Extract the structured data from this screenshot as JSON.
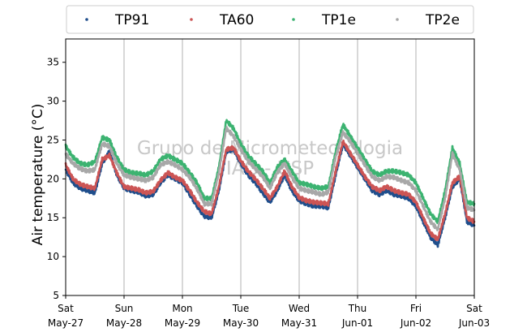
{
  "chart_data": {
    "type": "scatter",
    "ylabel": "Air temperature (°C)",
    "xlabel": "",
    "ylim": [
      5,
      38
    ],
    "yticks": [
      5,
      10,
      15,
      20,
      25,
      30,
      35
    ],
    "xlim": [
      "2023-05-27T00:00",
      "2023-06-03T00:00"
    ],
    "x_tick_labels": [
      {
        "day": "Sat",
        "date": "May-27"
      },
      {
        "day": "Sun",
        "date": "May-28"
      },
      {
        "day": "Mon",
        "date": "May-29"
      },
      {
        "day": "Tue",
        "date": "May-30"
      },
      {
        "day": "Wed",
        "date": "May-31"
      },
      {
        "day": "Thu",
        "date": "Jun-01"
      },
      {
        "day": "Fri",
        "date": "Jun-02"
      },
      {
        "day": "Sat",
        "date": "Jun-03"
      }
    ],
    "grid": "x-only",
    "legend_position": "top",
    "watermark": [
      "Grupo de Micrometeorologia",
      "IAG - USP"
    ],
    "x": [
      "2023-05-27T00:00",
      "2023-05-27T03:00",
      "2023-05-27T06:00",
      "2023-05-27T09:00",
      "2023-05-27T12:00",
      "2023-05-27T15:00",
      "2023-05-27T18:00",
      "2023-05-27T21:00",
      "2023-05-28T00:00",
      "2023-05-28T03:00",
      "2023-05-28T06:00",
      "2023-05-28T09:00",
      "2023-05-28T12:00",
      "2023-05-28T15:00",
      "2023-05-28T18:00",
      "2023-05-28T21:00",
      "2023-05-29T00:00",
      "2023-05-29T03:00",
      "2023-05-29T06:00",
      "2023-05-29T09:00",
      "2023-05-29T12:00",
      "2023-05-29T15:00",
      "2023-05-29T18:00",
      "2023-05-29T21:00",
      "2023-05-30T00:00",
      "2023-05-30T03:00",
      "2023-05-30T06:00",
      "2023-05-30T09:00",
      "2023-05-30T12:00",
      "2023-05-30T15:00",
      "2023-05-30T18:00",
      "2023-05-30T21:00",
      "2023-05-31T00:00",
      "2023-05-31T03:00",
      "2023-05-31T06:00",
      "2023-05-31T09:00",
      "2023-05-31T12:00",
      "2023-05-31T15:00",
      "2023-05-31T18:00",
      "2023-05-31T21:00",
      "2023-06-01T00:00",
      "2023-06-01T03:00",
      "2023-06-01T06:00",
      "2023-06-01T09:00",
      "2023-06-01T12:00",
      "2023-06-01T15:00",
      "2023-06-01T18:00",
      "2023-06-01T21:00",
      "2023-06-02T00:00",
      "2023-06-02T03:00",
      "2023-06-02T06:00",
      "2023-06-02T09:00",
      "2023-06-02T12:00",
      "2023-06-02T15:00",
      "2023-06-02T18:00",
      "2023-06-02T21:00",
      "2023-06-03T00:00"
    ],
    "series": [
      {
        "name": "TP91",
        "color": "#1f4e8c",
        "values": [
          21.2,
          19.5,
          18.8,
          18.5,
          18.2,
          22.0,
          23.5,
          20.5,
          18.8,
          18.5,
          18.3,
          17.8,
          18.0,
          19.5,
          20.5,
          20.0,
          19.5,
          18.0,
          16.5,
          15.2,
          15.0,
          18.5,
          23.5,
          23.8,
          22.0,
          20.5,
          19.5,
          18.2,
          17.0,
          18.5,
          20.5,
          18.5,
          17.2,
          16.8,
          16.5,
          16.5,
          16.3,
          20.5,
          24.5,
          23.0,
          21.5,
          20.0,
          18.5,
          18.0,
          18.5,
          18.0,
          17.8,
          17.5,
          16.5,
          14.5,
          12.5,
          11.5,
          15.0,
          19.0,
          20.0,
          14.5,
          14.0
        ]
      },
      {
        "name": "TA60",
        "color": "#cc5555",
        "values": [
          21.8,
          20.0,
          19.3,
          19.0,
          18.8,
          22.5,
          23.0,
          20.8,
          19.0,
          18.8,
          18.6,
          18.2,
          18.4,
          19.8,
          20.8,
          20.2,
          19.8,
          18.5,
          17.0,
          15.8,
          15.5,
          19.0,
          23.8,
          24.0,
          22.3,
          21.0,
          20.0,
          18.8,
          17.5,
          19.0,
          21.0,
          19.0,
          17.6,
          17.2,
          17.0,
          16.9,
          16.8,
          21.0,
          24.8,
          23.3,
          21.8,
          20.3,
          19.0,
          18.5,
          19.0,
          18.5,
          18.2,
          18.0,
          17.0,
          15.0,
          13.0,
          12.2,
          15.5,
          19.5,
          20.3,
          15.0,
          14.5
        ]
      },
      {
        "name": "TP1e",
        "color": "#3cb371",
        "values": [
          24.2,
          22.8,
          22.0,
          21.8,
          22.2,
          25.3,
          25.0,
          22.8,
          21.2,
          20.8,
          20.7,
          20.5,
          21.0,
          22.5,
          23.0,
          22.5,
          22.0,
          20.8,
          19.5,
          17.5,
          17.5,
          21.5,
          27.5,
          26.5,
          24.5,
          23.0,
          22.0,
          21.0,
          19.5,
          21.5,
          22.5,
          21.0,
          19.5,
          19.3,
          19.0,
          18.8,
          19.0,
          23.5,
          27.0,
          25.5,
          24.0,
          22.5,
          21.0,
          20.5,
          21.0,
          21.0,
          20.8,
          20.5,
          19.5,
          17.5,
          15.5,
          14.5,
          18.5,
          24.0,
          22.0,
          17.0,
          16.8
        ]
      },
      {
        "name": "TP2e",
        "color": "#a8a8a8",
        "values": [
          23.2,
          22.0,
          21.3,
          21.0,
          21.2,
          24.5,
          24.2,
          22.0,
          20.5,
          20.2,
          20.0,
          19.8,
          20.2,
          21.8,
          22.2,
          21.8,
          21.2,
          20.2,
          18.7,
          16.8,
          16.8,
          20.8,
          26.5,
          25.5,
          23.8,
          22.3,
          21.3,
          20.3,
          18.8,
          20.8,
          22.0,
          20.2,
          18.8,
          18.5,
          18.3,
          18.0,
          18.3,
          22.8,
          26.0,
          24.8,
          23.3,
          21.8,
          20.3,
          19.8,
          20.3,
          20.2,
          19.8,
          19.5,
          18.5,
          16.5,
          14.5,
          13.5,
          17.5,
          23.2,
          21.2,
          16.3,
          16.0
        ]
      }
    ]
  }
}
